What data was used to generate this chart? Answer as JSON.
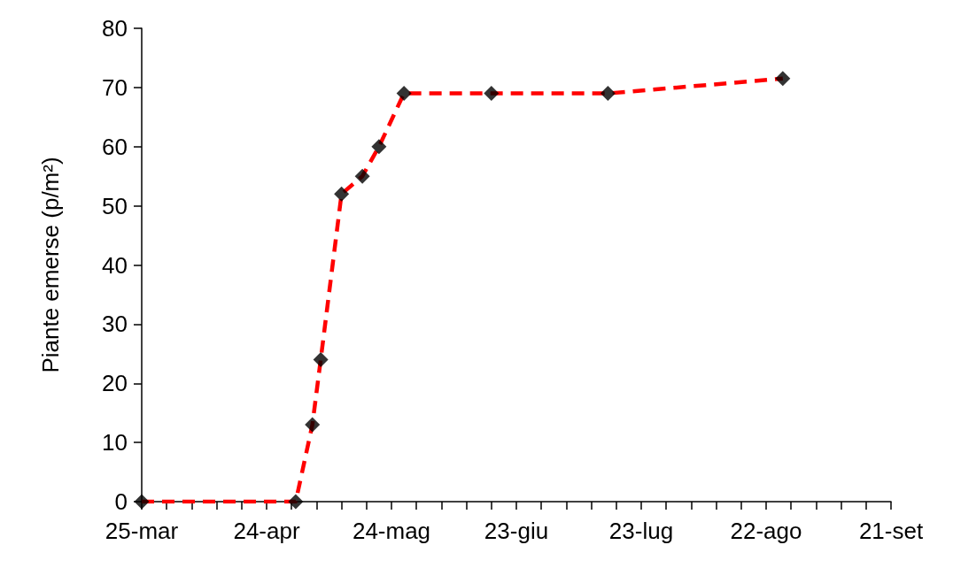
{
  "chart_data": {
    "type": "line",
    "ylabel": "Piante emerse (p/m²)",
    "x": [
      "--03-25",
      "--05-01",
      "--05-05",
      "--05-07",
      "--05-12",
      "--05-17",
      "--05-21",
      "--05-27",
      "--06-17",
      "--07-15",
      "--08-26"
    ],
    "series": [
      {
        "color": "#ff0000",
        "line_style": "dashed",
        "marker": "none",
        "values": [
          0,
          0,
          13,
          24,
          52,
          55,
          60,
          69,
          69,
          69,
          71.5
        ]
      },
      {
        "type": "scatter",
        "color": "#000000",
        "marker": "diamond",
        "values": [
          0,
          0,
          13,
          24,
          52,
          55,
          60,
          69,
          69,
          69,
          71.5
        ]
      }
    ],
    "xlim": [
      "--03-25",
      "--09-21"
    ],
    "xticks": [
      {
        "value": "--03-25",
        "label": "25-mar"
      },
      {
        "value": "--03-31",
        "label": null
      },
      {
        "value": "--04-06",
        "label": null
      },
      {
        "value": "--04-12",
        "label": null
      },
      {
        "value": "--04-18",
        "label": null
      },
      {
        "value": "--04-24",
        "label": "24-apr"
      },
      {
        "value": "--04-30",
        "label": null
      },
      {
        "value": "--05-06",
        "label": null
      },
      {
        "value": "--05-12",
        "label": null
      },
      {
        "value": "--05-18",
        "label": null
      },
      {
        "value": "--05-24",
        "label": "24-mag"
      },
      {
        "value": "--05-30",
        "label": null
      },
      {
        "value": "--06-05",
        "label": null
      },
      {
        "value": "--06-11",
        "label": null
      },
      {
        "value": "--06-17",
        "label": null
      },
      {
        "value": "--06-23",
        "label": "23-giu"
      },
      {
        "value": "--06-29",
        "label": null
      },
      {
        "value": "--07-05",
        "label": null
      },
      {
        "value": "--07-11",
        "label": null
      },
      {
        "value": "--07-17",
        "label": null
      },
      {
        "value": "--07-23",
        "label": "23-lug"
      },
      {
        "value": "--07-29",
        "label": null
      },
      {
        "value": "--08-04",
        "label": null
      },
      {
        "value": "--08-10",
        "label": null
      },
      {
        "value": "--08-16",
        "label": null
      },
      {
        "value": "--08-22",
        "label": "22-ago"
      },
      {
        "value": "--08-28",
        "label": null
      },
      {
        "value": "--09-03",
        "label": null
      },
      {
        "value": "--09-09",
        "label": null
      },
      {
        "value": "--09-15",
        "label": null
      },
      {
        "value": "--09-21",
        "label": "21-set"
      }
    ],
    "ylim": [
      0,
      80
    ],
    "yticks": [
      0,
      10,
      20,
      30,
      40,
      50,
      60,
      70,
      80
    ],
    "grid": false
  }
}
